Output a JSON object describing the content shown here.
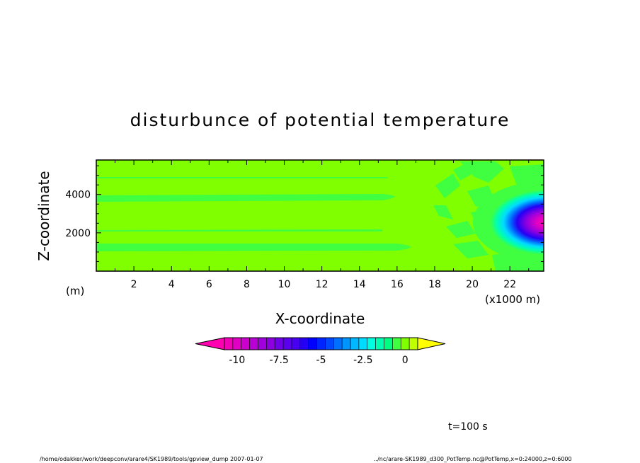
{
  "chart_data": {
    "type": "heatmap",
    "title": "disturbunce of potential temperature",
    "xlabel": "X-coordinate",
    "ylabel": "Z-coordinate",
    "x_unit": "(x1000 m)",
    "y_unit": "(m)",
    "xlim": [
      0,
      23.8
    ],
    "ylim": [
      0,
      5800
    ],
    "x_ticks": [
      "2",
      "4",
      "6",
      "8",
      "10",
      "12",
      "14",
      "16",
      "18",
      "20",
      "22"
    ],
    "y_ticks": [
      "2000",
      "4000"
    ],
    "colorbar": {
      "ticks": [
        "-10",
        "-7.5",
        "-5",
        "-2.5",
        "0"
      ],
      "levels": [
        -10.5,
        -10,
        -9.5,
        -9,
        -8.5,
        -8,
        -7.5,
        -7,
        -6.5,
        -6,
        -5.5,
        -5,
        -4.5,
        -4,
        -3.5,
        -3,
        -2.5,
        -2,
        -1.5,
        -1,
        -0.5,
        0,
        0.5
      ],
      "colors": [
        "#ff00b0",
        "#f200b8",
        "#e000c4",
        "#cc00cc",
        "#b800d4",
        "#a000dc",
        "#8c00e0",
        "#7000e8",
        "#5a00ec",
        "#4800f0",
        "#2400f4",
        "#0000ff",
        "#0024ff",
        "#0048ff",
        "#0070ff",
        "#0094ff",
        "#00b8ff",
        "#00dcff",
        "#00ffe0",
        "#00ffb0",
        "#00ff80",
        "#40ff40",
        "#80ff00",
        "#c0ff00",
        "#ffff00"
      ],
      "extend": "both"
    },
    "features": [
      {
        "name": "cold pool minimum",
        "x": 23.3,
        "z": 2500,
        "value": -10.5
      },
      {
        "name": "background",
        "value": 0
      }
    ]
  },
  "time_label": "t=100 s",
  "footer_left": "/home/odakker/work/deepconv/arare4/SK1989/tools/gpview_dump  2007-01-07",
  "footer_right": "../nc/arare-SK1989_d300_PotTemp.nc@PotTemp,x=0:24000,z=0:6000"
}
